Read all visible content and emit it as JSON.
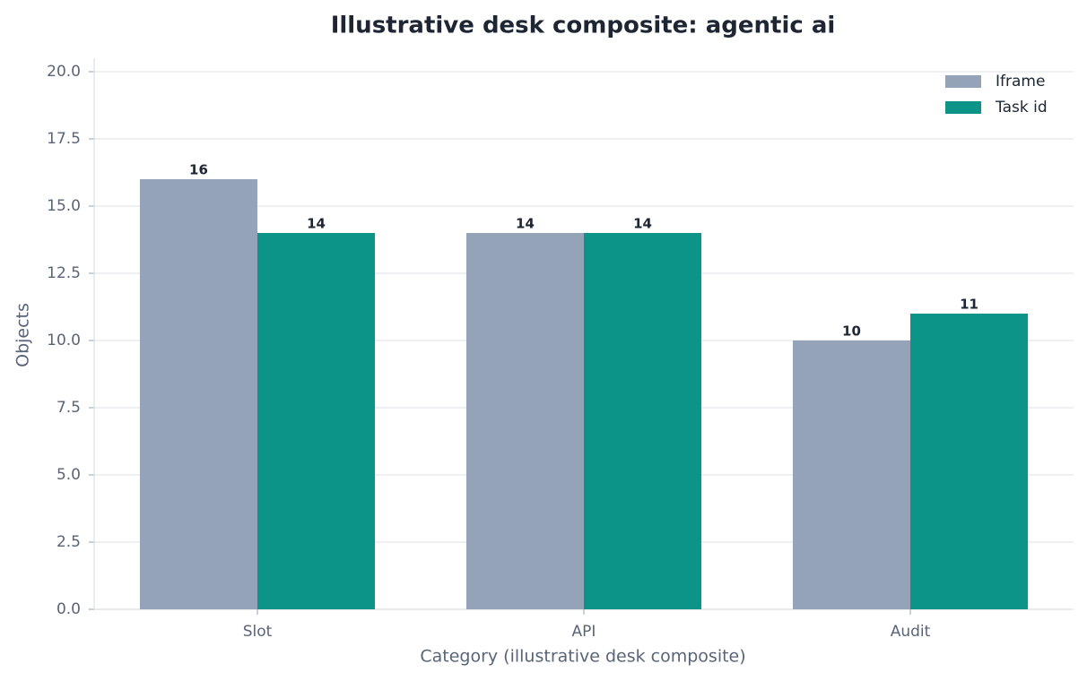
{
  "chart_data": {
    "type": "bar",
    "title": "Illustrative desk composite: agentic ai",
    "x_label": "Category (illustrative desk composite)",
    "y_label": "Objects",
    "categories": [
      "Slot",
      "API",
      "Audit"
    ],
    "series": [
      {
        "name": "Iframe",
        "color": "#94a3b8",
        "values": [
          16,
          14,
          10
        ]
      },
      {
        "name": "Task id",
        "color": "#0d9488",
        "values": [
          14,
          14,
          11
        ]
      }
    ],
    "ylim": [
      0,
      20.5
    ],
    "yticks": [
      {
        "value": 0,
        "label": "0.0"
      },
      2.5,
      {
        "value": 5,
        "label": "5.0"
      },
      7.5,
      {
        "value": 10,
        "label": "10.0"
      },
      12.5,
      {
        "value": 15,
        "label": "15.0"
      },
      17.5,
      {
        "value": 20,
        "label": "20.0"
      }
    ],
    "grid": true,
    "legend": "upper right"
  }
}
